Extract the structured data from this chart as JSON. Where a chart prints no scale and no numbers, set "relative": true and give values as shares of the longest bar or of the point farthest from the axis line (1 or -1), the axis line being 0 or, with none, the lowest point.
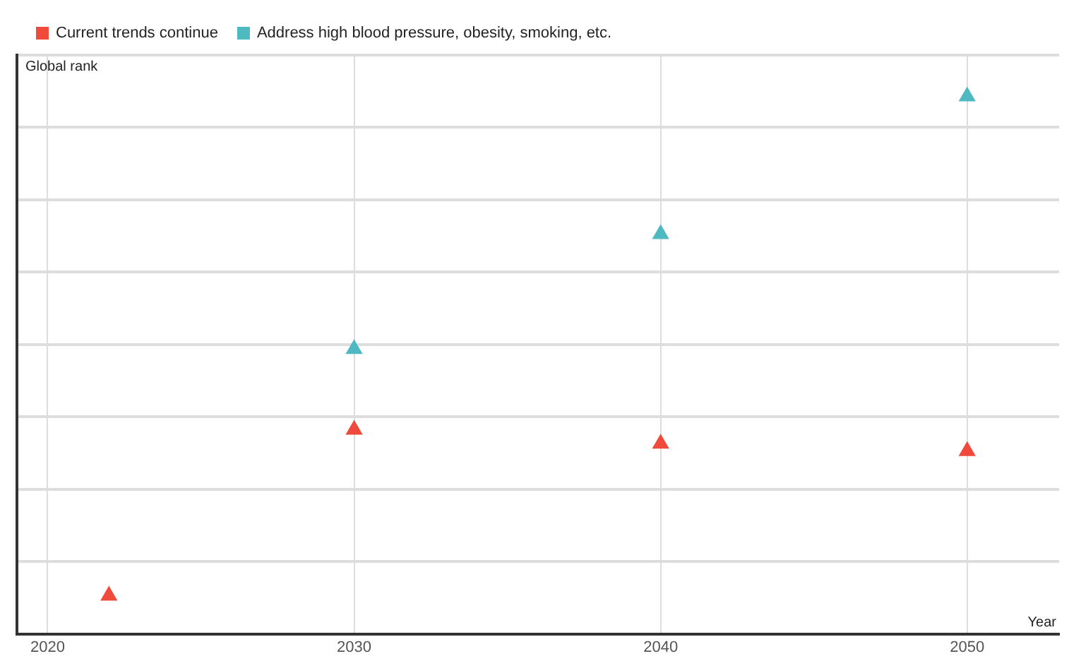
{
  "chart_data": {
    "type": "scatter",
    "xlabel": "Year",
    "ylabel": "Global rank",
    "relative": true,
    "xlim": [
      2019,
      2053
    ],
    "xticks": [
      2020,
      2030,
      2040,
      2050
    ],
    "series": [
      {
        "name": "Current trends continue",
        "color": "#ef4a3c",
        "x": [
          2022,
          2030,
          2040,
          2050
        ],
        "values": [
          0.071,
          0.38,
          0.354,
          0.34
        ]
      },
      {
        "name": "Address high blood pressure, obesity, smoking, etc.",
        "color": "#4fb9c2",
        "x": [
          2030,
          2040,
          2050
        ],
        "values": [
          0.53,
          0.744,
          1
        ]
      }
    ],
    "marker": "triangle",
    "grid": true,
    "legend": "top left"
  }
}
